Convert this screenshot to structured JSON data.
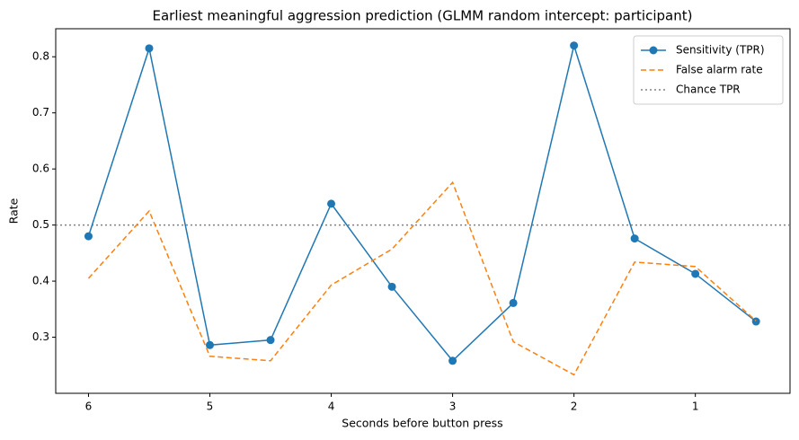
{
  "chart_data": {
    "type": "line",
    "title": "Earliest meaningful aggression prediction (GLMM random intercept: participant)",
    "xlabel": "Seconds before button press",
    "ylabel": "Rate",
    "x": [
      6,
      5.5,
      5,
      4.5,
      4,
      3.5,
      3,
      2.5,
      2,
      1.5,
      1,
      0.5
    ],
    "series": [
      {
        "name": "Sensitivity (TPR)",
        "color": "#1f77b4",
        "style": "solid",
        "marker": true,
        "values": [
          0.48,
          0.815,
          0.286,
          0.295,
          0.538,
          0.39,
          0.258,
          0.361,
          0.82,
          0.476,
          0.413,
          0.328
        ]
      },
      {
        "name": "False alarm rate",
        "color": "#ff7f0e",
        "style": "dashed",
        "marker": false,
        "values": [
          0.405,
          0.525,
          0.266,
          0.258,
          0.393,
          0.457,
          0.576,
          0.292,
          0.233,
          0.434,
          0.426,
          0.329
        ]
      }
    ],
    "hline": {
      "name": "Chance TPR",
      "color": "#808080",
      "style": "dotted",
      "value": 0.5
    },
    "xlim": [
      6.27,
      0.22
    ],
    "xticks": [
      6,
      5,
      4,
      3,
      2,
      1
    ],
    "ylim": [
      0.2,
      0.85
    ],
    "yticks": [
      0.3,
      0.4,
      0.5,
      0.6,
      0.7,
      0.8
    ],
    "grid": false,
    "legend": "upper right"
  }
}
